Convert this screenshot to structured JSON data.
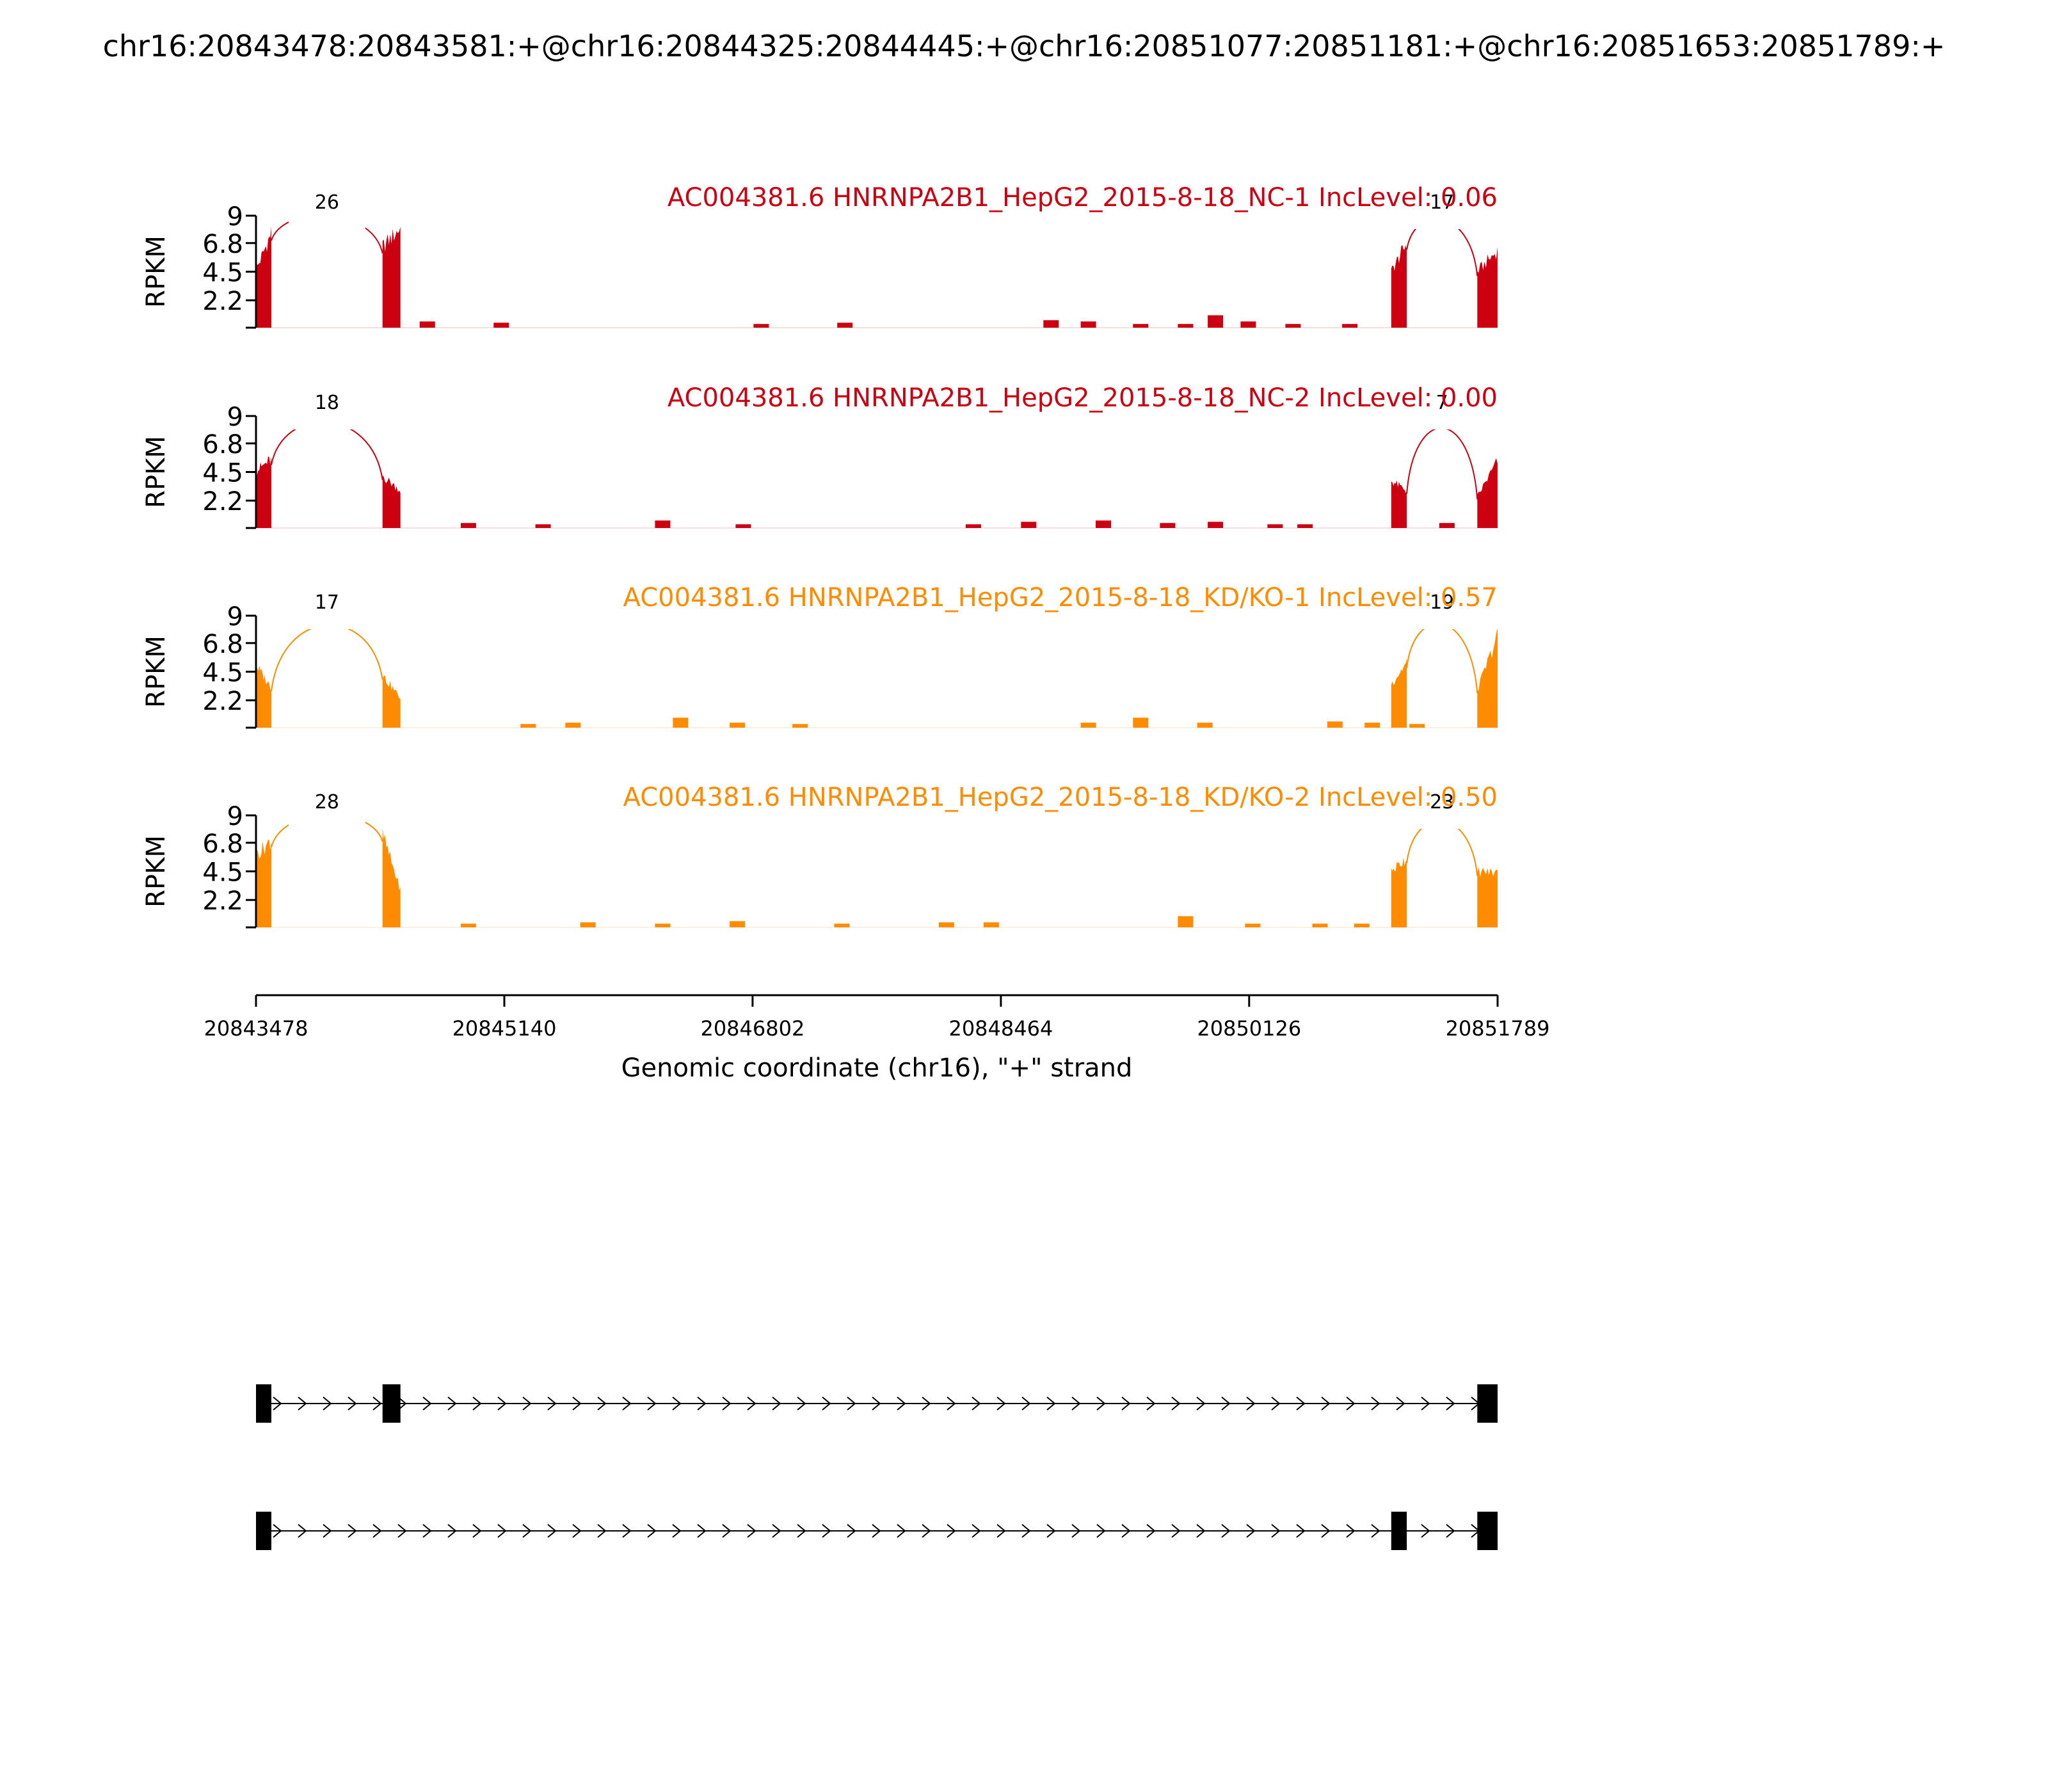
{
  "figure_title": "chr16:20843478:20843581:+@chr16:20844325:20844445:+@chr16:20851077:20851181:+@chr16:20851653:20851789:+",
  "chart_data": {
    "type": "area",
    "subtype": "sashimi-plot",
    "xlabel": "Genomic coordinate (chr16), \"+\" strand",
    "ylabel": "RPKM",
    "xlim": [
      20843478,
      20851789
    ],
    "ylim": [
      0,
      9
    ],
    "x_ticks": [
      "20843478",
      "20845140",
      "20846802",
      "20848464",
      "20850126",
      "20851789"
    ],
    "y_ticks": [
      "9",
      "6.8",
      "4.5",
      "2.2"
    ],
    "exons": [
      [
        20843478,
        20843581
      ],
      [
        20844325,
        20844445
      ],
      [
        20851077,
        20851181
      ],
      [
        20851653,
        20851789
      ]
    ],
    "panels": [
      {
        "label": "AC004381.6 HNRNPA2B1_HepG2_2015-8-18_NC-1 IncLevel: 0.06",
        "color": "#cc0011",
        "junctions": [
          {
            "label": "26",
            "from": 20843581,
            "to": 20844325
          },
          {
            "label": "17",
            "from": 20851181,
            "to": 20851653
          }
        ],
        "exon_coverage": [
          [
            4.6,
            7.6
          ],
          [
            6.5,
            8.0
          ],
          [
            4.5,
            6.8
          ],
          [
            4.5,
            6.2
          ]
        ],
        "intronic_bumps": [
          [
            20844625,
            0.5
          ],
          [
            20845120,
            0.4
          ],
          [
            20846860,
            0.3
          ],
          [
            20847420,
            0.4
          ],
          [
            20848800,
            0.6
          ],
          [
            20849050,
            0.5
          ],
          [
            20849400,
            0.3
          ],
          [
            20849700,
            0.3
          ],
          [
            20849900,
            1.0
          ],
          [
            20850120,
            0.5
          ],
          [
            20850420,
            0.3
          ],
          [
            20850800,
            0.3
          ]
        ]
      },
      {
        "label": "AC004381.6 HNRNPA2B1_HepG2_2015-8-18_NC-2 IncLevel: 0.00",
        "color": "#cc0011",
        "junctions": [
          {
            "label": "18",
            "from": 20843581,
            "to": 20844325
          },
          {
            "label": "7",
            "from": 20851181,
            "to": 20851653
          }
        ],
        "exon_coverage": [
          [
            4.6,
            5.5
          ],
          [
            4.2,
            3.0
          ],
          [
            3.8,
            3.0
          ],
          [
            2.5,
            5.4
          ]
        ],
        "intronic_bumps": [
          [
            20844900,
            0.4
          ],
          [
            20845400,
            0.3
          ],
          [
            20846200,
            0.6
          ],
          [
            20846740,
            0.3
          ],
          [
            20848280,
            0.3
          ],
          [
            20848650,
            0.5
          ],
          [
            20849150,
            0.6
          ],
          [
            20849580,
            0.4
          ],
          [
            20849900,
            0.5
          ],
          [
            20850300,
            0.3
          ],
          [
            20850500,
            0.3
          ],
          [
            20851450,
            0.4
          ]
        ]
      },
      {
        "label": "AC004381.6 HNRNPA2B1_HepG2_2015-8-18_KD/KO-1 IncLevel: 0.57",
        "color": "#ff8c00",
        "junctions": [
          {
            "label": "17",
            "from": 20843581,
            "to": 20844325
          },
          {
            "label": "19",
            "from": 20851181,
            "to": 20851653
          }
        ],
        "exon_coverage": [
          [
            5.0,
            3.2
          ],
          [
            4.2,
            2.4
          ],
          [
            3.5,
            5.2
          ],
          [
            3.0,
            7.4
          ]
        ],
        "intronic_bumps": [
          [
            20845300,
            0.3
          ],
          [
            20845600,
            0.4
          ],
          [
            20846320,
            0.8
          ],
          [
            20846700,
            0.4
          ],
          [
            20847120,
            0.3
          ],
          [
            20849050,
            0.4
          ],
          [
            20849400,
            0.8
          ],
          [
            20849830,
            0.4
          ],
          [
            20850700,
            0.5
          ],
          [
            20850950,
            0.4
          ],
          [
            20851250,
            0.3
          ]
        ]
      },
      {
        "label": "AC004381.6 HNRNPA2B1_HepG2_2015-8-18_KD/KO-2 IncLevel: 0.50",
        "color": "#ff8c00",
        "junctions": [
          {
            "label": "28",
            "from": 20843581,
            "to": 20844325
          },
          {
            "label": "23",
            "from": 20851181,
            "to": 20851653
          }
        ],
        "exon_coverage": [
          [
            5.8,
            7.0
          ],
          [
            7.5,
            3.0
          ],
          [
            4.5,
            5.6
          ],
          [
            4.5,
            4.4
          ]
        ],
        "intronic_bumps": [
          [
            20844900,
            0.3
          ],
          [
            20845700,
            0.4
          ],
          [
            20846200,
            0.3
          ],
          [
            20846700,
            0.5
          ],
          [
            20847400,
            0.3
          ],
          [
            20848100,
            0.4
          ],
          [
            20848400,
            0.4
          ],
          [
            20849700,
            0.9
          ],
          [
            20850150,
            0.3
          ],
          [
            20850600,
            0.3
          ],
          [
            20850880,
            0.3
          ]
        ]
      }
    ],
    "isoforms": [
      {
        "exons": [
          [
            20843478,
            20843581
          ],
          [
            20844325,
            20844445
          ],
          [
            20851653,
            20851789
          ]
        ]
      },
      {
        "exons": [
          [
            20843478,
            20843581
          ],
          [
            20851077,
            20851181
          ],
          [
            20851653,
            20851789
          ]
        ]
      }
    ]
  }
}
